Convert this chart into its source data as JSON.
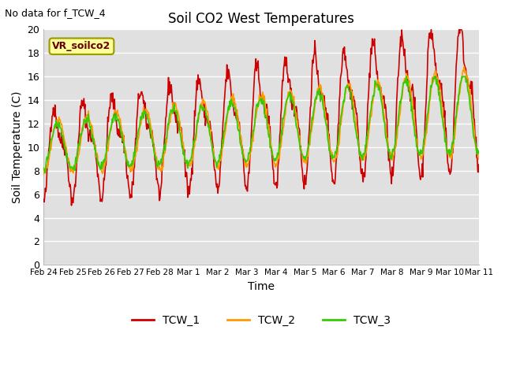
{
  "title": "Soil CO2 West Temperatures",
  "xlabel": "Time",
  "ylabel": "Soil Temperature (C)",
  "annotation_text": "No data for f_TCW_4",
  "legend_box_text": "VR_soilco2",
  "ylim": [
    0,
    20
  ],
  "yticks": [
    0,
    2,
    4,
    6,
    8,
    10,
    12,
    14,
    16,
    18,
    20
  ],
  "x_labels": [
    "Feb 24",
    "Feb 25",
    "Feb 26",
    "Feb 27",
    "Feb 28",
    "Mar 1",
    "Mar 2",
    "Mar 3",
    "Mar 4",
    "Mar 5",
    "Mar 6",
    "Mar 7",
    "Mar 8",
    "Mar 9",
    "Mar 10",
    "Mar 11"
  ],
  "colors": {
    "TCW_1": "#cc0000",
    "TCW_2": "#ff9900",
    "TCW_3": "#33cc00",
    "background": "#e0e0e0",
    "grid": "#ffffff",
    "legend_box_bg": "#ffff99",
    "legend_box_border": "#999900"
  },
  "linewidth": 1.2,
  "num_days": 16,
  "points_per_day": 48
}
